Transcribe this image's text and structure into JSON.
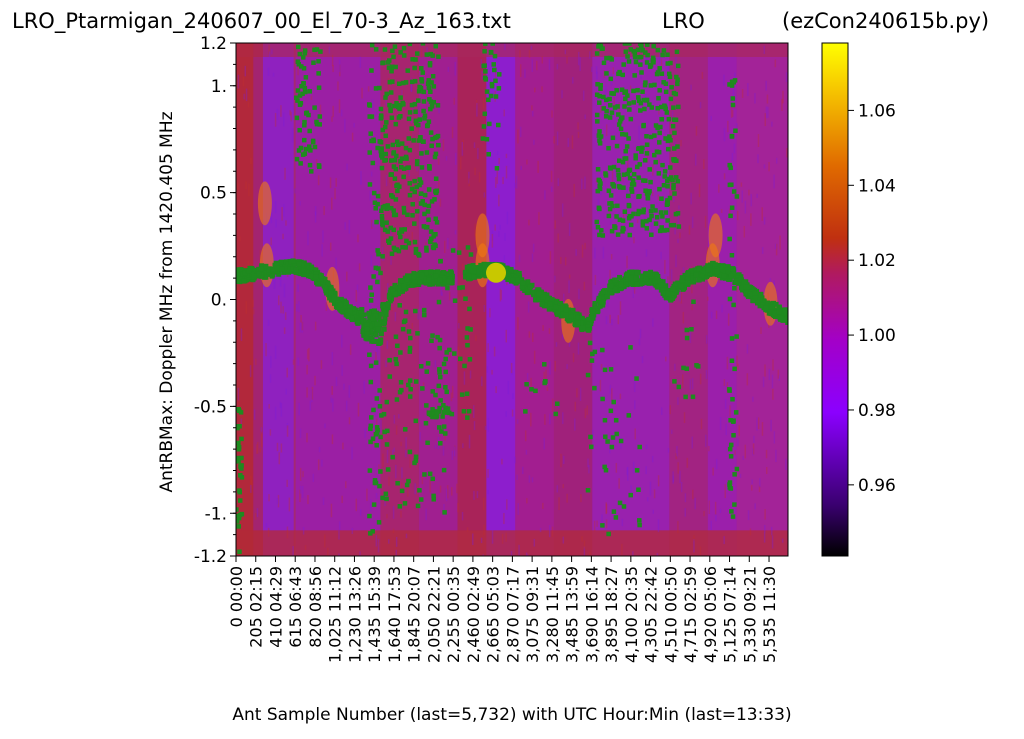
{
  "header": {
    "title_left": "LRO_Ptarmigan_240607_00_El_70-3_Az_163.txt",
    "title_center": "LRO",
    "title_right": "(ezCon240615b.py)"
  },
  "chart_data": {
    "type": "heatmap",
    "xlabel": "Ant Sample Number (last=5,732) with UTC Hour:Min (last=13:33)",
    "ylabel": "AntRBMax:  Doppler MHz from 1420.405 MHz",
    "xlim": [
      0,
      5732
    ],
    "ylim": [
      -1.2,
      1.2
    ],
    "y_ticks": [
      {
        "value": 1.2,
        "label": "1.2"
      },
      {
        "value": 1.0,
        "label": "1."
      },
      {
        "value": 0.5,
        "label": "0.5"
      },
      {
        "value": 0.0,
        "label": "0."
      },
      {
        "value": -0.5,
        "label": "-0.5"
      },
      {
        "value": -1.0,
        "label": "-1."
      },
      {
        "value": -1.2,
        "label": "-1.2"
      }
    ],
    "x_ticks": [
      {
        "value": 0,
        "label": "0",
        "time": "00:00"
      },
      {
        "value": 205,
        "label": "205",
        "time": "02:15"
      },
      {
        "value": 410,
        "label": "410",
        "time": "04:29"
      },
      {
        "value": 615,
        "label": "615",
        "time": "06:43"
      },
      {
        "value": 820,
        "label": "820",
        "time": "08:56"
      },
      {
        "value": 1025,
        "label": "1,025",
        "time": "11:12"
      },
      {
        "value": 1230,
        "label": "1,230",
        "time": "13:26"
      },
      {
        "value": 1435,
        "label": "1,435",
        "time": "15:39"
      },
      {
        "value": 1640,
        "label": "1,640",
        "time": "17:53"
      },
      {
        "value": 1845,
        "label": "1,845",
        "time": "20:07"
      },
      {
        "value": 2050,
        "label": "2,050",
        "time": "22:21"
      },
      {
        "value": 2255,
        "label": "2,255",
        "time": "00:35"
      },
      {
        "value": 2460,
        "label": "2,460",
        "time": "02:49"
      },
      {
        "value": 2665,
        "label": "2,665",
        "time": "05:03"
      },
      {
        "value": 2870,
        "label": "2,870",
        "time": "07:17"
      },
      {
        "value": 3075,
        "label": "3,075",
        "time": "09:31"
      },
      {
        "value": 3280,
        "label": "3,280",
        "time": "11:45"
      },
      {
        "value": 3485,
        "label": "3,485",
        "time": "13:59"
      },
      {
        "value": 3690,
        "label": "3,690",
        "time": "16:14"
      },
      {
        "value": 3895,
        "label": "3,895",
        "time": "18:27"
      },
      {
        "value": 4100,
        "label": "4,100",
        "time": "20:35"
      },
      {
        "value": 4305,
        "label": "4,305",
        "time": "22:42"
      },
      {
        "value": 4510,
        "label": "4,510",
        "time": "00:50"
      },
      {
        "value": 4715,
        "label": "4,715",
        "time": "02:59"
      },
      {
        "value": 4920,
        "label": "4,920",
        "time": "05:06"
      },
      {
        "value": 5125,
        "label": "5,125",
        "time": "07:14"
      },
      {
        "value": 5330,
        "label": "5,330",
        "time": "09:21"
      },
      {
        "value": 5535,
        "label": "5,535",
        "time": "11:30"
      }
    ],
    "colorbar": {
      "colormap": "gnuplot",
      "range": [
        0.941,
        1.078
      ],
      "ticks": [
        {
          "value": 0.96,
          "label": "0.96"
        },
        {
          "value": 0.98,
          "label": "0.98"
        },
        {
          "value": 1.0,
          "label": "1.00"
        },
        {
          "value": 1.02,
          "label": "1.02"
        },
        {
          "value": 1.04,
          "label": "1.04"
        },
        {
          "value": 1.06,
          "label": "1.06"
        }
      ]
    },
    "doppler_curve": {
      "color": "#1f8a1f",
      "points": [
        [
          0,
          0.11
        ],
        [
          300,
          0.13
        ],
        [
          600,
          0.16
        ],
        [
          750,
          0.14
        ],
        [
          900,
          0.08
        ],
        [
          1050,
          -0.01
        ],
        [
          1250,
          -0.08
        ],
        [
          1400,
          -0.12
        ],
        [
          1500,
          -0.14
        ],
        [
          1600,
          0.02
        ],
        [
          1800,
          0.09
        ],
        [
          2000,
          0.1
        ],
        [
          2200,
          0.1
        ],
        [
          2450,
          0.13
        ],
        [
          2700,
          0.14
        ],
        [
          2900,
          0.11
        ],
        [
          3100,
          0.03
        ],
        [
          3300,
          -0.03
        ],
        [
          3500,
          -0.08
        ],
        [
          3650,
          -0.13
        ],
        [
          3720,
          -0.05
        ],
        [
          3900,
          0.06
        ],
        [
          4100,
          0.1
        ],
        [
          4350,
          0.1
        ],
        [
          4500,
          0.02
        ],
        [
          4700,
          0.1
        ],
        [
          4950,
          0.14
        ],
        [
          5150,
          0.12
        ],
        [
          5350,
          0.03
        ],
        [
          5550,
          -0.04
        ],
        [
          5732,
          -0.08
        ]
      ]
    },
    "marker": {
      "x": 2700,
      "y": 0.125,
      "color": "#c8c800"
    }
  }
}
